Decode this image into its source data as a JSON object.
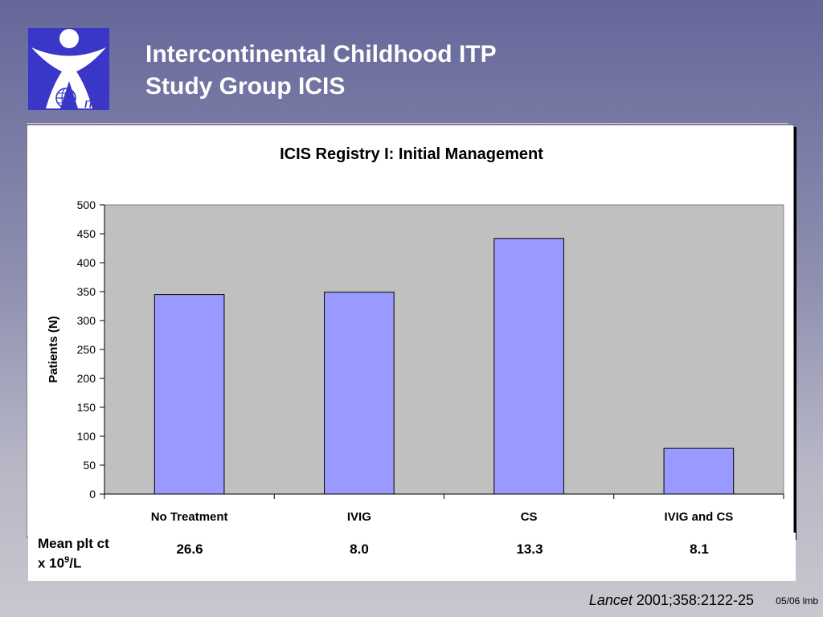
{
  "slide": {
    "title_line1": "Intercontinental Childhood ITP",
    "title_line2": "Study Group ICIS",
    "logo_text": "ITP"
  },
  "chart_data": {
    "type": "bar",
    "title": "ICIS Registry I: Initial Management",
    "categories": [
      "No Treatment",
      "IVIG",
      "CS",
      "IVIG and CS"
    ],
    "values": [
      345,
      349,
      442,
      79
    ],
    "ylabel": "Patients (N)",
    "xlabel": "",
    "ylim": [
      0,
      500
    ],
    "yticks": [
      0,
      50,
      100,
      150,
      200,
      250,
      300,
      350,
      400,
      450,
      500
    ],
    "grid": false,
    "legend": "none",
    "colors": {
      "bar": "#9999ff",
      "plot_area": "#c0c0c0",
      "bar_border": "#000000"
    }
  },
  "stats": {
    "label_line1": "Mean plt ct",
    "label_prefix": "x 10",
    "label_sup": "9",
    "label_suffix": "/L",
    "values": [
      "26.6",
      "8.0",
      "13.3",
      "8.1"
    ]
  },
  "citation": {
    "journal": "Lancet",
    "ref": " 2001;358:2122-25"
  },
  "footer_code": "05/06 lmb"
}
